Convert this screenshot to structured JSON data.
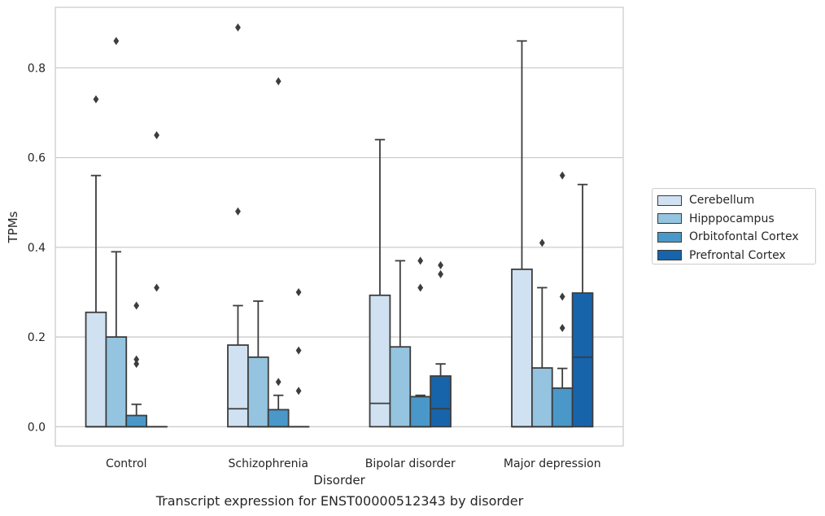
{
  "chart_data": {
    "type": "box",
    "caption": "Transcript expression for ENST00000512343 by disorder",
    "xlabel": "Disorder",
    "ylabel": "TPMs",
    "ylim": [
      -0.043,
      0.935
    ],
    "yticks": [
      0.0,
      0.2,
      0.4,
      0.6,
      0.8
    ],
    "ytick_labels": [
      "0.0",
      "0.2",
      "0.4",
      "0.6",
      "0.8"
    ],
    "grid": true,
    "legend_position": "right",
    "categories": [
      "Control",
      "Schizophrenia",
      "Bipolar disorder",
      "Major depression"
    ],
    "series": [
      {
        "name": "Cerebellum",
        "color": "#d0e1f2",
        "boxes": [
          {
            "q1": 0.0,
            "median": 0.0,
            "q3": 0.255,
            "whisker_low": 0.0,
            "whisker_high": 0.56,
            "outliers": [
              0.73
            ]
          },
          {
            "q1": 0.0,
            "median": 0.04,
            "q3": 0.182,
            "whisker_low": 0.0,
            "whisker_high": 0.27,
            "outliers": [
              0.48,
              0.89
            ]
          },
          {
            "q1": 0.0,
            "median": 0.052,
            "q3": 0.293,
            "whisker_low": 0.0,
            "whisker_high": 0.64,
            "outliers": []
          },
          {
            "q1": 0.0,
            "median": 0.0,
            "q3": 0.351,
            "whisker_low": 0.0,
            "whisker_high": 0.86,
            "outliers": []
          }
        ]
      },
      {
        "name": "Hipppocampus",
        "color": "#94c4df",
        "boxes": [
          {
            "q1": 0.0,
            "median": 0.0,
            "q3": 0.2,
            "whisker_low": 0.0,
            "whisker_high": 0.39,
            "outliers": [
              0.86
            ]
          },
          {
            "q1": 0.0,
            "median": 0.0,
            "q3": 0.155,
            "whisker_low": 0.0,
            "whisker_high": 0.28,
            "outliers": []
          },
          {
            "q1": 0.0,
            "median": 0.0,
            "q3": 0.178,
            "whisker_low": 0.0,
            "whisker_high": 0.37,
            "outliers": []
          },
          {
            "q1": 0.0,
            "median": 0.0,
            "q3": 0.131,
            "whisker_low": 0.0,
            "whisker_high": 0.31,
            "outliers": [
              0.41
            ]
          }
        ]
      },
      {
        "name": "Orbitofontal Cortex",
        "color": "#4a98c9",
        "boxes": [
          {
            "q1": 0.0,
            "median": 0.0,
            "q3": 0.025,
            "whisker_low": 0.0,
            "whisker_high": 0.05,
            "outliers": [
              0.14,
              0.15,
              0.27
            ]
          },
          {
            "q1": 0.0,
            "median": 0.0,
            "q3": 0.038,
            "whisker_low": 0.0,
            "whisker_high": 0.07,
            "outliers": [
              0.1,
              0.77
            ]
          },
          {
            "q1": 0.0,
            "median": 0.0,
            "q3": 0.067,
            "whisker_low": 0.0,
            "whisker_high": 0.07,
            "outliers": [
              0.31,
              0.37
            ]
          },
          {
            "q1": 0.0,
            "median": 0.0,
            "q3": 0.086,
            "whisker_low": 0.0,
            "whisker_high": 0.13,
            "outliers": [
              0.22,
              0.29,
              0.56
            ]
          }
        ]
      },
      {
        "name": "Prefrontal Cortex",
        "color": "#1764ab",
        "boxes": [
          {
            "q1": 0.0,
            "median": 0.0,
            "q3": 0.0,
            "whisker_low": 0.0,
            "whisker_high": 0.0,
            "outliers": [
              0.31,
              0.65
            ]
          },
          {
            "q1": 0.0,
            "median": 0.0,
            "q3": 0.0,
            "whisker_low": 0.0,
            "whisker_high": 0.0,
            "outliers": [
              0.08,
              0.17,
              0.3
            ]
          },
          {
            "q1": 0.0,
            "median": 0.04,
            "q3": 0.113,
            "whisker_low": 0.0,
            "whisker_high": 0.14,
            "outliers": [
              0.34,
              0.36
            ]
          },
          {
            "q1": 0.0,
            "median": 0.155,
            "q3": 0.298,
            "whisker_low": 0.0,
            "whisker_high": 0.54,
            "outliers": []
          }
        ]
      }
    ]
  }
}
